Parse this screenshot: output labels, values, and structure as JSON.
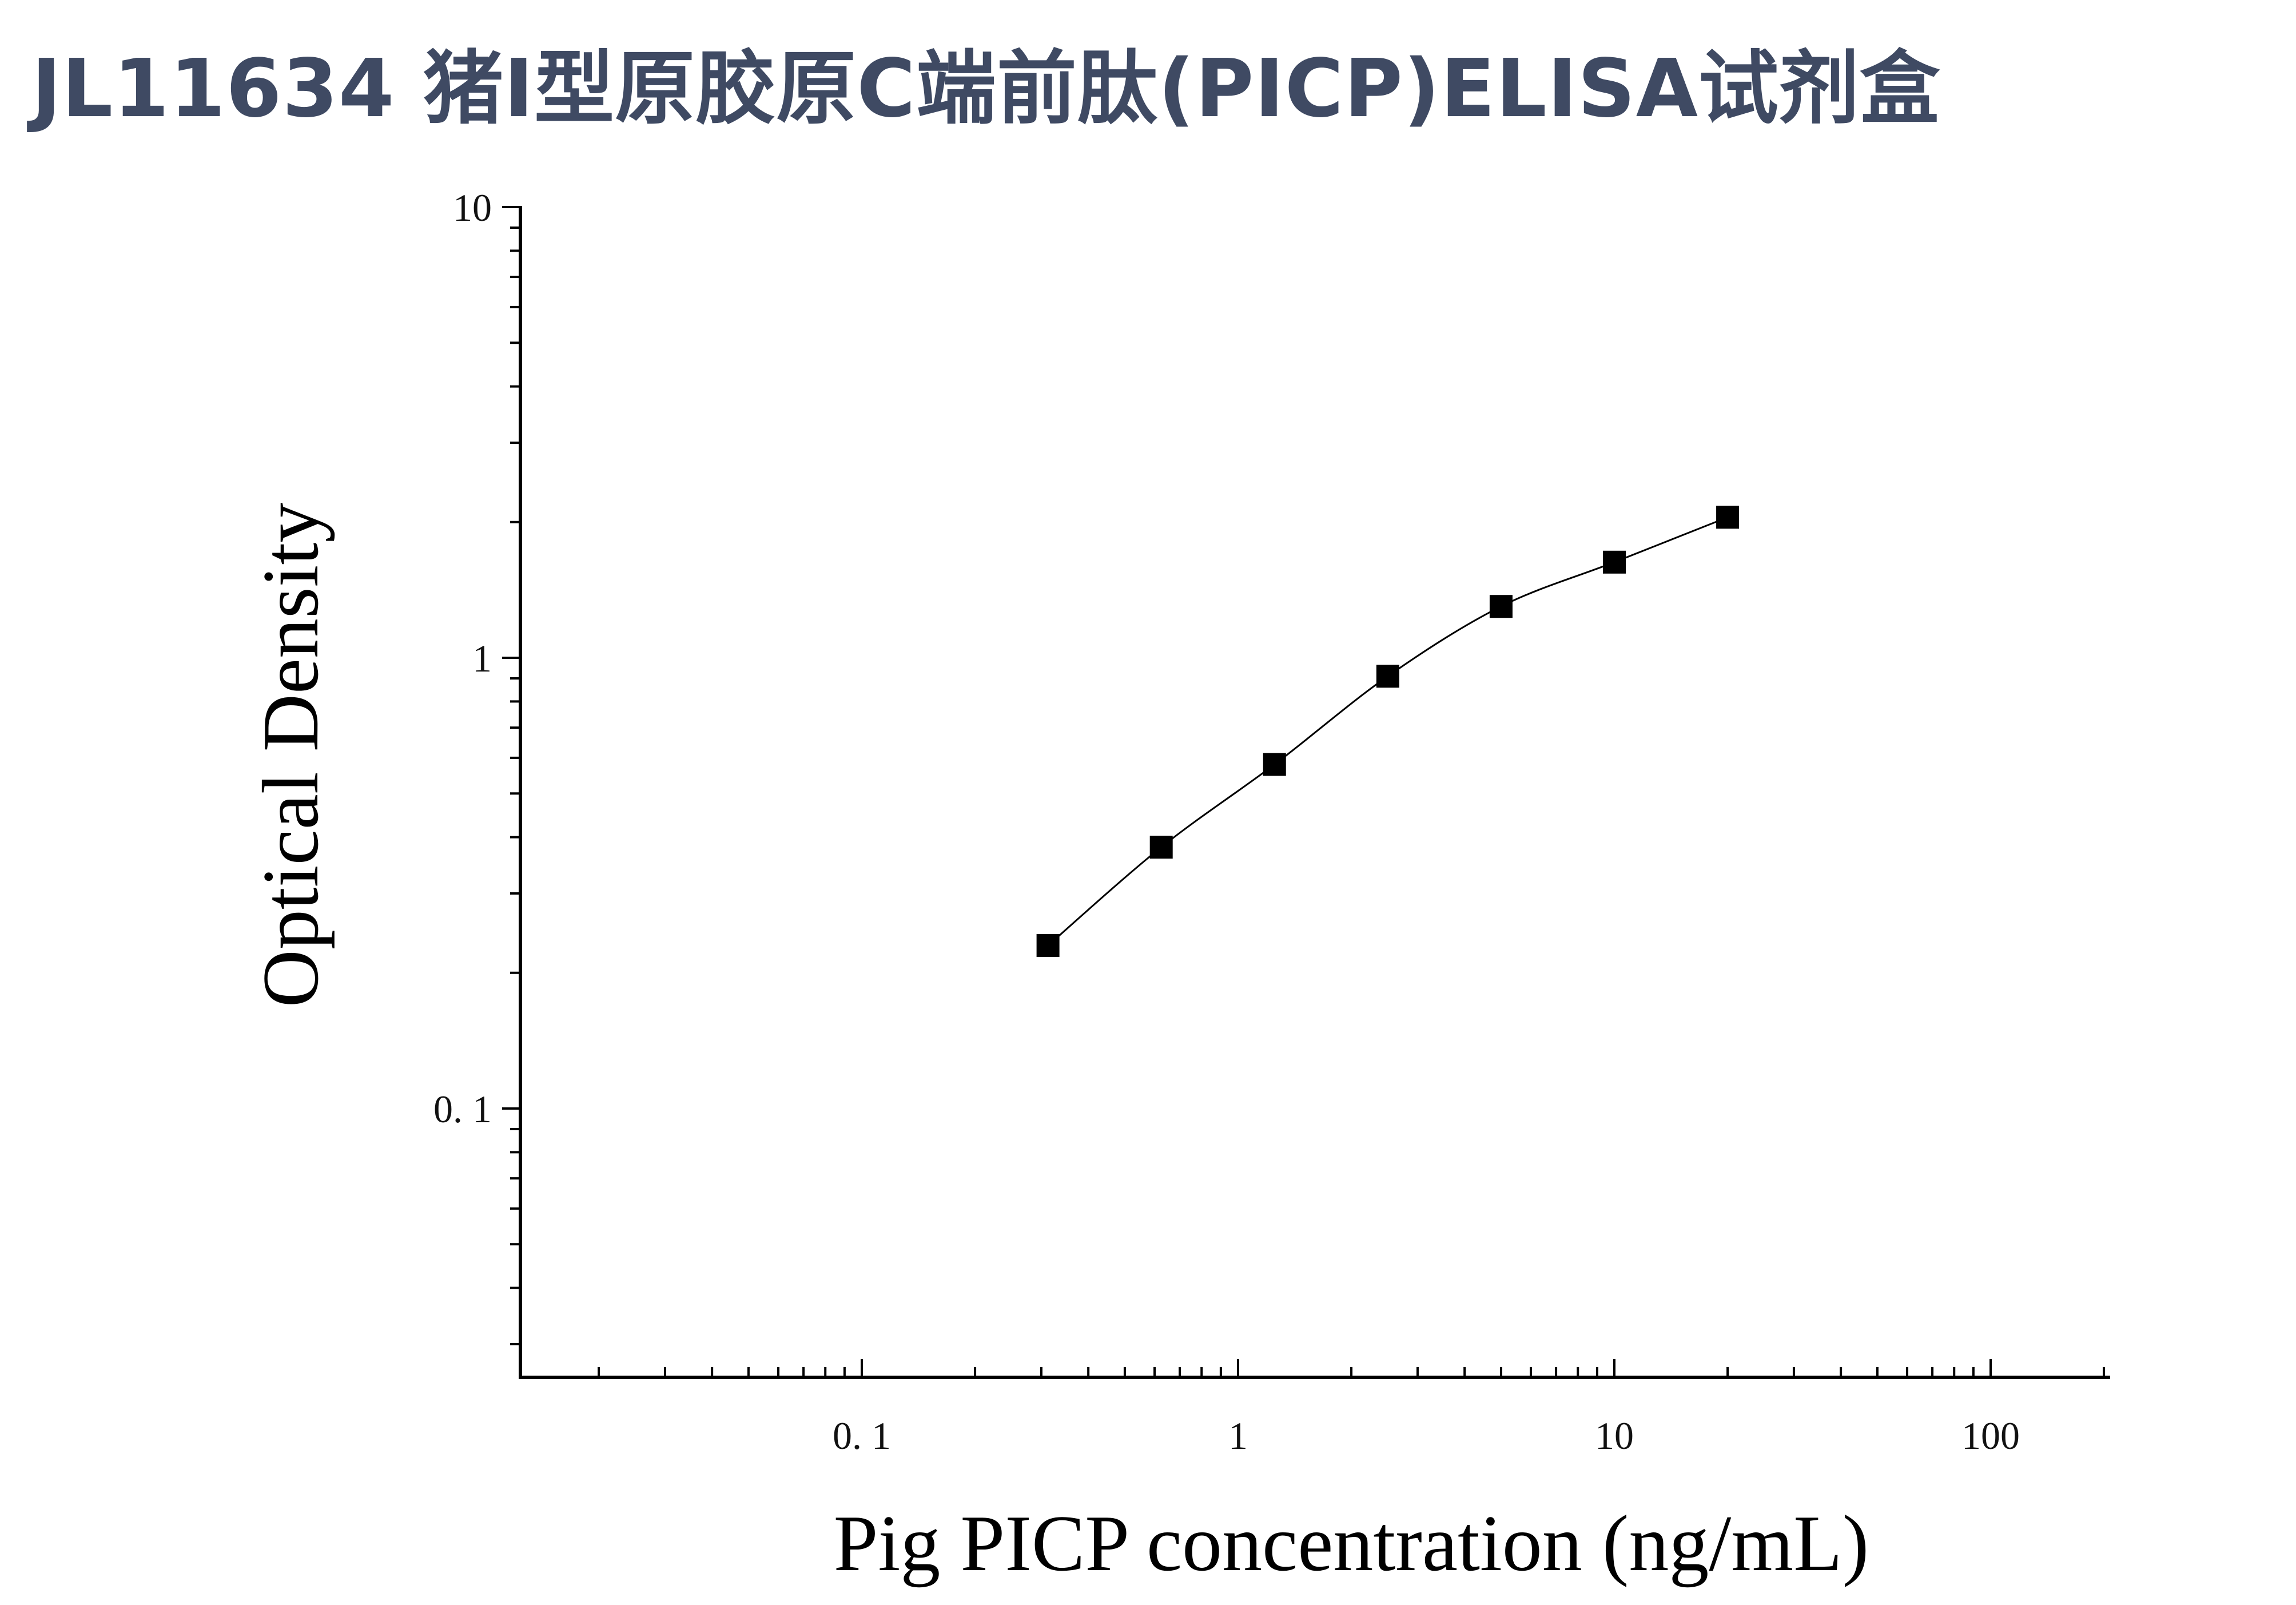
{
  "title": "JL11634 猪I型原胶原C端前肽(PICP)ELISA试剂盒",
  "chart_data": {
    "type": "scatter",
    "title": "JL11634 猪I型原胶原C端前肽(PICP)ELISA试剂盒",
    "xlabel": "Pig PICP concentration (ng/mL)",
    "ylabel": "Optical Density",
    "xscale": "log",
    "yscale": "log",
    "xlim": [
      0.014,
      200
    ],
    "ylim": [
      0.025,
      10
    ],
    "xticks": [
      0.1,
      1,
      10,
      100
    ],
    "xtick_labels": [
      "0. 1",
      "1",
      "10",
      "100"
    ],
    "yticks": [
      0.1,
      1,
      10
    ],
    "ytick_labels": [
      "0. 1",
      "1",
      "10"
    ],
    "grid": false,
    "marker": "square",
    "fit_line": true,
    "series": [
      {
        "x": [
          0.3125,
          0.625,
          1.25,
          2.5,
          5,
          10,
          20
        ],
        "y": [
          0.23,
          0.38,
          0.58,
          0.91,
          1.3,
          1.63,
          2.05
        ]
      }
    ],
    "colors": {
      "marker": "#000000",
      "line": "#000000",
      "axis": "#000000"
    }
  }
}
